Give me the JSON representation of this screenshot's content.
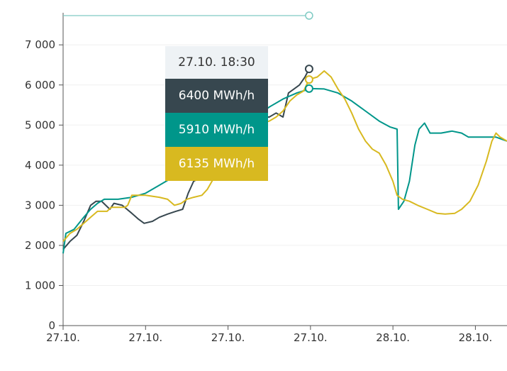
{
  "chart_data": {
    "type": "line",
    "title": "",
    "xlabel": "",
    "ylabel": "",
    "ylim": [
      0,
      7800
    ],
    "yticks": [
      "0",
      "1 000",
      "2 000",
      "3 000",
      "4 000",
      "5 000",
      "6 000",
      "7 000"
    ],
    "ytick_values": [
      0,
      1000,
      2000,
      3000,
      4000,
      5000,
      6000,
      7000
    ],
    "xticks": [
      "27.10.",
      "27.10.",
      "27.10.",
      "27.10.",
      "28.10.",
      "28.10."
    ],
    "xtick_hours": [
      0,
      6,
      12,
      18,
      24,
      30
    ],
    "xlim_hours": [
      0,
      32.3
    ],
    "series": [
      {
        "color": "#37474f",
        "points": [
          [
            0,
            1900
          ],
          [
            0.5,
            2100
          ],
          [
            1,
            2250
          ],
          [
            1.5,
            2600
          ],
          [
            2,
            3000
          ],
          [
            2.4,
            3100
          ],
          [
            2.8,
            3100
          ],
          [
            3.1,
            3000
          ],
          [
            3.4,
            2900
          ],
          [
            3.7,
            3050
          ],
          [
            4.3,
            3000
          ],
          [
            5,
            2800
          ],
          [
            5.5,
            2650
          ],
          [
            5.9,
            2550
          ],
          [
            6.5,
            2600
          ],
          [
            7,
            2700
          ],
          [
            7.6,
            2780
          ],
          [
            8.2,
            2850
          ],
          [
            8.7,
            2900
          ],
          [
            9.1,
            3300
          ],
          [
            9.5,
            3600
          ],
          [
            9.8,
            3650
          ],
          [
            10.2,
            3800
          ],
          [
            11,
            4100
          ],
          [
            12,
            4300
          ],
          [
            12.5,
            4500
          ],
          [
            13,
            4700
          ],
          [
            13.5,
            5000
          ],
          [
            14,
            5150
          ],
          [
            14.5,
            5200
          ],
          [
            15,
            5200
          ],
          [
            15.5,
            5300
          ],
          [
            16,
            5200
          ],
          [
            16.4,
            5800
          ],
          [
            16.8,
            5900
          ],
          [
            17.2,
            6000
          ],
          [
            17.6,
            6200
          ],
          [
            17.9,
            6400
          ]
        ]
      },
      {
        "color": "#00968a",
        "points": [
          [
            0,
            1800
          ],
          [
            0.2,
            2300
          ],
          [
            0.8,
            2400
          ],
          [
            1.5,
            2700
          ],
          [
            2,
            2900
          ],
          [
            2.5,
            3050
          ],
          [
            3,
            3150
          ],
          [
            4,
            3150
          ],
          [
            5,
            3200
          ],
          [
            6,
            3300
          ],
          [
            7,
            3500
          ],
          [
            8,
            3700
          ],
          [
            9,
            3950
          ],
          [
            10,
            4200
          ],
          [
            11,
            4450
          ],
          [
            12,
            4700
          ],
          [
            13,
            4950
          ],
          [
            14,
            5200
          ],
          [
            15,
            5450
          ],
          [
            16,
            5650
          ],
          [
            17,
            5800
          ],
          [
            18,
            5910
          ],
          [
            19,
            5900
          ],
          [
            20,
            5800
          ],
          [
            21,
            5600
          ],
          [
            22,
            5350
          ],
          [
            23,
            5100
          ],
          [
            23.8,
            4950
          ],
          [
            24.3,
            4900
          ],
          [
            24.4,
            2900
          ],
          [
            24.8,
            3100
          ],
          [
            25.2,
            3600
          ],
          [
            25.6,
            4500
          ],
          [
            25.9,
            4900
          ],
          [
            26.3,
            5050
          ],
          [
            26.7,
            4800
          ],
          [
            27.5,
            4800
          ],
          [
            28.3,
            4850
          ],
          [
            29,
            4800
          ],
          [
            29.5,
            4700
          ],
          [
            30.5,
            4700
          ],
          [
            31.5,
            4700
          ],
          [
            32.3,
            4600
          ]
        ]
      },
      {
        "color": "#d8b920",
        "points": [
          [
            0,
            2100
          ],
          [
            0.5,
            2300
          ],
          [
            1,
            2400
          ],
          [
            1.5,
            2550
          ],
          [
            2,
            2700
          ],
          [
            2.5,
            2850
          ],
          [
            3.2,
            2850
          ],
          [
            3.5,
            2950
          ],
          [
            4.5,
            2950
          ],
          [
            4.7,
            3000
          ],
          [
            5,
            3250
          ],
          [
            6,
            3250
          ],
          [
            7,
            3200
          ],
          [
            7.6,
            3150
          ],
          [
            8.1,
            3000
          ],
          [
            8.6,
            3050
          ],
          [
            9,
            3150
          ],
          [
            9.5,
            3200
          ],
          [
            10.1,
            3250
          ],
          [
            10.5,
            3400
          ],
          [
            11,
            3700
          ],
          [
            11.5,
            3950
          ],
          [
            12,
            4200
          ],
          [
            12.5,
            4500
          ],
          [
            13,
            4800
          ],
          [
            13.5,
            4950
          ],
          [
            14,
            5050
          ],
          [
            14.5,
            5050
          ],
          [
            15,
            5100
          ],
          [
            15.5,
            5200
          ],
          [
            16,
            5350
          ],
          [
            16.5,
            5600
          ],
          [
            17,
            5750
          ],
          [
            17.5,
            5850
          ],
          [
            17.9,
            6135
          ],
          [
            18.5,
            6200
          ],
          [
            19,
            6350
          ],
          [
            19.5,
            6200
          ],
          [
            20,
            5900
          ],
          [
            20.5,
            5650
          ],
          [
            21,
            5300
          ],
          [
            21.5,
            4900
          ],
          [
            22,
            4600
          ],
          [
            22.5,
            4400
          ],
          [
            23,
            4300
          ],
          [
            23.5,
            4000
          ],
          [
            24,
            3600
          ],
          [
            24.3,
            3250
          ],
          [
            24.7,
            3150
          ],
          [
            25.2,
            3100
          ],
          [
            25.8,
            3000
          ],
          [
            26.5,
            2900
          ],
          [
            27.2,
            2800
          ],
          [
            27.8,
            2780
          ],
          [
            28.5,
            2800
          ],
          [
            29,
            2900
          ],
          [
            29.6,
            3100
          ],
          [
            30.2,
            3500
          ],
          [
            30.8,
            4100
          ],
          [
            31.2,
            4600
          ],
          [
            31.5,
            4800
          ],
          [
            31.8,
            4700
          ],
          [
            32.3,
            4600
          ]
        ]
      }
    ],
    "tooltip": {
      "time": "27.10. 18:30",
      "hover_hour": 17.9,
      "values": [
        {
          "label": "6400 MWh/h",
          "value": 6400,
          "color": "#37474f"
        },
        {
          "label": "5910 MWh/h",
          "value": 5910,
          "color": "#00968a"
        },
        {
          "label": "6135 MWh/h",
          "value": 6135,
          "color": "#d8b920"
        }
      ]
    },
    "navigator_color": "#7fcbc4",
    "grid": true,
    "legend": "none"
  }
}
